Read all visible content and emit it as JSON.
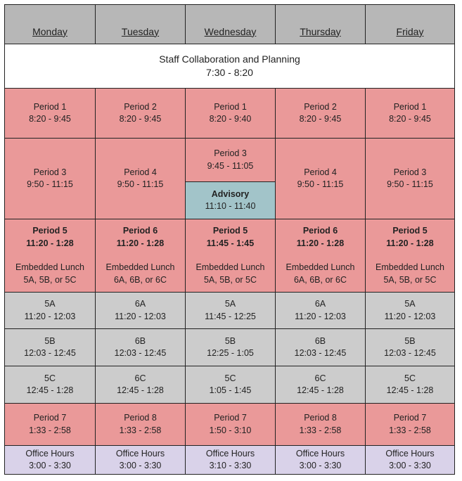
{
  "days": [
    "Monday",
    "Tuesday",
    "Wednesday",
    "Thursday",
    "Friday"
  ],
  "staff": {
    "title": "Staff Collaboration and Planning",
    "time": "7:30 - 8:20"
  },
  "p1": [
    {
      "label": "Period 1",
      "time": "8:20 - 9:45"
    },
    {
      "label": "Period 2",
      "time": "8:20 - 9:45"
    },
    {
      "label": "Period 1",
      "time": "8:20 - 9:40"
    },
    {
      "label": "Period 2",
      "time": "8:20 - 9:45"
    },
    {
      "label": "Period 1",
      "time": "8:20 - 9:45"
    }
  ],
  "p2": [
    {
      "label": "Period 3",
      "time": "9:50 - 11:15"
    },
    {
      "label": "Period 4",
      "time": "9:50 - 11:15"
    },
    {
      "label": "Period 3",
      "time": "9:45 - 11:05"
    },
    {
      "label": "Period 4",
      "time": "9:50 - 11:15"
    },
    {
      "label": "Period 3",
      "time": "9:50 - 11:15"
    }
  ],
  "advisory": {
    "label": "Advisory",
    "time": "11:10 - 11:40"
  },
  "p3": [
    {
      "label": "Period 5",
      "time": "11:20 - 1:28",
      "lunch": "Embedded Lunch",
      "options": "5A, 5B, or 5C"
    },
    {
      "label": "Period 6",
      "time": "11:20 - 1:28",
      "lunch": "Embedded Lunch",
      "options": "6A, 6B, or 6C"
    },
    {
      "label": "Period 5",
      "time": "11:45 - 1:45",
      "lunch": "Embedded Lunch",
      "options": "5A, 5B, or 5C"
    },
    {
      "label": "Period 6",
      "time": "11:20 - 1:28",
      "lunch": "Embedded Lunch",
      "options": "6A, 6B, or 6C"
    },
    {
      "label": "Period 5",
      "time": "11:20 - 1:28",
      "lunch": "Embedded Lunch",
      "options": "5A, 5B, or 5C"
    }
  ],
  "lunchA": [
    {
      "label": "5A",
      "time": "11:20 - 12:03"
    },
    {
      "label": "6A",
      "time": "11:20 - 12:03"
    },
    {
      "label": "5A",
      "time": "11:45 - 12:25"
    },
    {
      "label": "6A",
      "time": "11:20 - 12:03"
    },
    {
      "label": "5A",
      "time": "11:20 - 12:03"
    }
  ],
  "lunchB": [
    {
      "label": "5B",
      "time": "12:03 - 12:45"
    },
    {
      "label": "6B",
      "time": "12:03 - 12:45"
    },
    {
      "label": "5B",
      "time": "12:25 - 1:05"
    },
    {
      "label": "6B",
      "time": "12:03 - 12:45"
    },
    {
      "label": "5B",
      "time": "12:03 - 12:45"
    }
  ],
  "lunchC": [
    {
      "label": "5C",
      "time": "12:45 - 1:28"
    },
    {
      "label": "6C",
      "time": "12:45 - 1:28"
    },
    {
      "label": "5C",
      "time": "1:05 - 1:45"
    },
    {
      "label": "6C",
      "time": "12:45 - 1:28"
    },
    {
      "label": "5C",
      "time": "12:45 - 1:28"
    }
  ],
  "p4": [
    {
      "label": "Period 7",
      "time": "1:33 - 2:58"
    },
    {
      "label": "Period 8",
      "time": "1:33 - 2:58"
    },
    {
      "label": "Period 7",
      "time": "1:50 - 3:10"
    },
    {
      "label": "Period 8",
      "time": "1:33 - 2:58"
    },
    {
      "label": "Period 7",
      "time": "1:33 - 2:58"
    }
  ],
  "office": [
    {
      "label": "Office Hours",
      "time": "3:00 - 3:30"
    },
    {
      "label": "Office Hours",
      "time": "3:00 - 3:30"
    },
    {
      "label": "Office Hours",
      "time": "3:10 - 3:30"
    },
    {
      "label": "Office Hours",
      "time": "3:00 - 3:30"
    },
    {
      "label": "Office Hours",
      "time": "3:00 - 3:30"
    }
  ],
  "colors": {
    "header": "#b7b7b7",
    "period": "#ea9999",
    "lunch": "#cccccc",
    "advisory": "#a2c4c9",
    "office_hours": "#d9d2e9"
  }
}
